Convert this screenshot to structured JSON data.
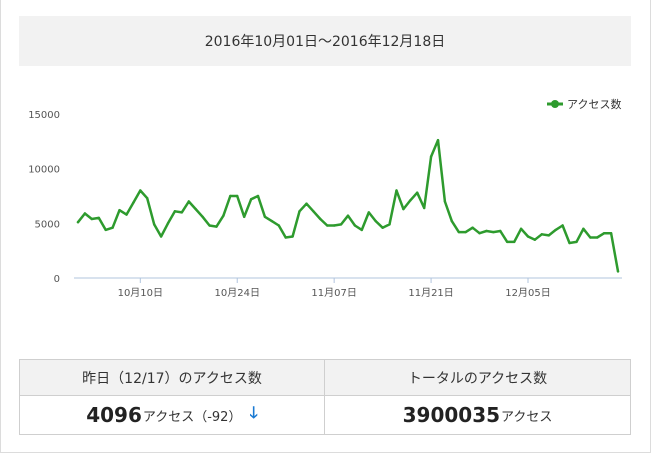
{
  "period_label": "2016年10月01日〜2016年12月18日",
  "chart_data": {
    "type": "line",
    "title": "",
    "xlabel": "",
    "ylabel": "",
    "ylim": [
      0,
      15000
    ],
    "yticks": [
      0,
      5000,
      10000,
      15000
    ],
    "x_start_label": "2016-10-01",
    "x_tick_labels": [
      {
        "index": 9,
        "label": "10月10日"
      },
      {
        "index": 23,
        "label": "10月24日"
      },
      {
        "index": 37,
        "label": "11月07日"
      },
      {
        "index": 51,
        "label": "11月21日"
      },
      {
        "index": 65,
        "label": "12月05日"
      }
    ],
    "grid": false,
    "legend_position": "top-right",
    "series": [
      {
        "name": "アクセス数",
        "color": "#2e9b2e",
        "values": [
          5100,
          5900,
          5400,
          5500,
          4400,
          4600,
          6200,
          5800,
          6900,
          8000,
          7300,
          4900,
          3800,
          5000,
          6100,
          6000,
          7000,
          6300,
          5600,
          4800,
          4700,
          5700,
          7500,
          7500,
          5600,
          7200,
          7500,
          5600,
          5200,
          4800,
          3700,
          3800,
          6100,
          6800,
          6100,
          5400,
          4800,
          4800,
          4900,
          5700,
          4800,
          4400,
          6000,
          5200,
          4600,
          4900,
          8000,
          6300,
          7100,
          7800,
          6400,
          11100,
          12600,
          7000,
          5200,
          4200,
          4200,
          4600,
          4100,
          4300,
          4200,
          4300,
          3300,
          3300,
          4500,
          3800,
          3500,
          4000,
          3900,
          4400,
          4800,
          3200,
          3300,
          4500,
          3700,
          3700,
          4100,
          4100,
          600
        ]
      }
    ]
  },
  "stats": {
    "yesterday_header": "昨日（12/17）のアクセス数",
    "yesterday_value": "4096",
    "yesterday_unit": "アクセス（-92）",
    "yesterday_arrow": "🡓",
    "total_header": "トータルのアクセス数",
    "total_value": "3900035",
    "total_unit": "アクセス"
  }
}
